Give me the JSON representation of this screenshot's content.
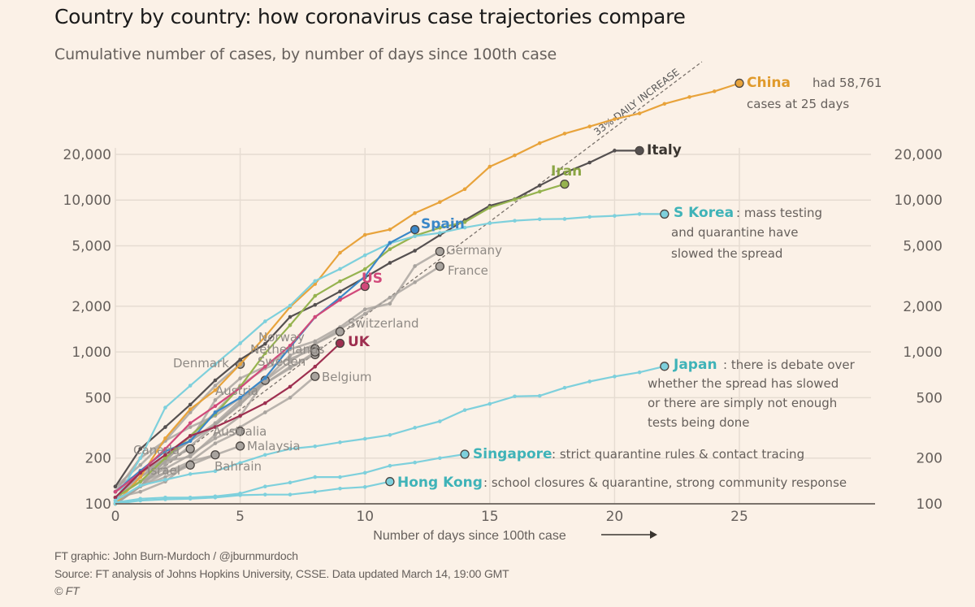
{
  "header": {
    "title": "Country by country: how coronavirus case trajectories compare",
    "subtitle": "Cumulative number of cases, by number of days since 100th case"
  },
  "footer": {
    "credit": "FT graphic: John Burn-Murdoch / @jburnmurdoch",
    "source": "Source: FT analysis of Johns Hopkins University, CSSE. Data updated March 14, 19:00 GMT",
    "copyright": "© FT"
  },
  "chart_data": {
    "type": "line",
    "title": "Country by country: how coronavirus case trajectories compare",
    "subtitle": "Cumulative number of cases, by number of days since 100th case",
    "xlabel": "Number of days since 100th case",
    "xlabel_arrow": "→",
    "ylabel": "",
    "yscale": "log",
    "xlim": [
      0,
      30
    ],
    "ylim": [
      100,
      60000
    ],
    "x_ticks": [
      0,
      5,
      10,
      15,
      20,
      25
    ],
    "x_tick_labels": [
      "0",
      "5",
      "10",
      "15",
      "20",
      "25"
    ],
    "y_ticks": [
      100,
      200,
      500,
      1000,
      2000,
      5000,
      10000,
      20000
    ],
    "y_tick_labels": [
      "100",
      "200",
      "500",
      "1,000",
      "2,000",
      "5,000",
      "10,000",
      "20,000"
    ],
    "grid": true,
    "reference_line": {
      "label": "33% DAILY INCREASE",
      "daily_growth": 0.33,
      "start": 100,
      "x_end": 23.5
    },
    "series": [
      {
        "name": "China",
        "color": "#e8a33b",
        "highlight": true,
        "note": "had 58,761 cases at 25 days",
        "x": [
          0,
          1,
          2,
          3,
          4,
          5,
          6,
          7,
          8,
          9,
          10,
          11,
          12,
          13,
          14,
          15,
          16,
          17,
          18,
          19,
          20,
          21,
          22,
          23,
          24,
          25
        ],
        "y": [
          100,
          150,
          270,
          420,
          560,
          830,
          1260,
          1980,
          2800,
          4500,
          5900,
          6400,
          8200,
          9700,
          11800,
          16600,
          19700,
          23700,
          27400,
          30500,
          34100,
          37200,
          43000,
          47700,
          52000,
          58761
        ]
      },
      {
        "name": "Italy",
        "color": "#555050",
        "highlight": true,
        "note": "",
        "x": [
          0,
          1,
          2,
          3,
          4,
          5,
          6,
          7,
          8,
          9,
          10,
          11,
          12,
          13,
          14,
          15,
          16,
          17,
          18,
          19,
          20,
          21
        ],
        "y": [
          130,
          230,
          320,
          450,
          650,
          890,
          1130,
          1700,
          2040,
          2500,
          3090,
          3860,
          4640,
          5880,
          7380,
          9170,
          10150,
          12460,
          15110,
          17660,
          21160,
          21160
        ]
      },
      {
        "name": "Iran",
        "color": "#96b34f",
        "highlight": true,
        "note": "",
        "x": [
          0,
          1,
          2,
          3,
          4,
          5,
          6,
          7,
          8,
          9,
          10,
          11,
          12,
          13,
          14,
          15,
          16,
          17,
          18
        ],
        "y": [
          110,
          140,
          200,
          280,
          390,
          590,
          980,
          1500,
          2340,
          2920,
          3510,
          4750,
          5820,
          6570,
          7160,
          8920,
          10080,
          11360,
          12730
        ]
      },
      {
        "name": "S Korea",
        "color": "#7ed0dc",
        "highlight": true,
        "note": "mass testing and quarantine have slowed the spread",
        "x": [
          0,
          1,
          2,
          3,
          4,
          5,
          6,
          7,
          8,
          9,
          10,
          11,
          12,
          13,
          14,
          15,
          16,
          17,
          18,
          19,
          20,
          21,
          22
        ],
        "y": [
          105,
          200,
          430,
          600,
          830,
          1140,
          1590,
          2020,
          2930,
          3520,
          4330,
          5190,
          5780,
          6080,
          6590,
          7040,
          7310,
          7480,
          7510,
          7750,
          7870,
          8090,
          8086
        ]
      },
      {
        "name": "Spain",
        "color": "#3a87c8",
        "highlight": true,
        "note": "",
        "x": [
          0,
          1,
          2,
          3,
          4,
          5,
          6,
          7,
          8,
          9,
          10,
          11,
          12
        ],
        "y": [
          120,
          165,
          222,
          259,
          400,
          500,
          673,
          1073,
          1695,
          2277,
          3146,
          5232,
          6391
        ]
      },
      {
        "name": "Germany",
        "color": "#a8a39e",
        "highlight": false,
        "note": "",
        "x": [
          0,
          1,
          2,
          3,
          4,
          5,
          6,
          7,
          8,
          9,
          10,
          11,
          12,
          13
        ],
        "y": [
          130,
          159,
          196,
          262,
          482,
          670,
          799,
          1040,
          1176,
          1457,
          1908,
          2078,
          3675,
          4585
        ]
      },
      {
        "name": "France",
        "color": "#a8a39e",
        "highlight": false,
        "note": "",
        "x": [
          0,
          1,
          2,
          3,
          4,
          5,
          6,
          7,
          8,
          9,
          10,
          11,
          12,
          13
        ],
        "y": [
          100,
          130,
          191,
          204,
          285,
          377,
          653,
          949,
          1126,
          1412,
          1784,
          2281,
          2876,
          3661
        ]
      },
      {
        "name": "US",
        "color": "#d1497a",
        "highlight": true,
        "note": "",
        "x": [
          0,
          1,
          2,
          3,
          4,
          5,
          6,
          7,
          8,
          9,
          10
        ],
        "y": [
          120,
          160,
          230,
          340,
          440,
          580,
          800,
          1100,
          1700,
          2200,
          2700
        ]
      },
      {
        "name": "Switzerland",
        "color": "#a8a39e",
        "highlight": false,
        "note": "",
        "x": [
          0,
          1,
          2,
          3,
          4,
          5,
          6,
          7,
          8,
          9
        ],
        "y": [
          120,
          150,
          200,
          260,
          340,
          480,
          650,
          860,
          1130,
          1360
        ]
      },
      {
        "name": "UK",
        "color": "#9e2f50",
        "highlight": true,
        "note": "",
        "x": [
          0,
          1,
          2,
          3,
          4,
          5,
          6,
          7,
          8,
          9
        ],
        "y": [
          110,
          160,
          210,
          280,
          320,
          380,
          460,
          590,
          800,
          1140
        ]
      },
      {
        "name": "Norway",
        "color": "#a8a39e",
        "highlight": false,
        "note": "",
        "x": [
          0,
          1,
          2,
          3,
          4,
          5,
          6,
          7,
          8
        ],
        "y": [
          110,
          150,
          190,
          280,
          400,
          600,
          780,
          900,
          1050
        ]
      },
      {
        "name": "Netherlands",
        "color": "#a8a39e",
        "highlight": false,
        "note": "",
        "x": [
          0,
          1,
          2,
          3,
          4,
          5,
          6,
          7,
          8
        ],
        "y": [
          130,
          180,
          260,
          320,
          380,
          500,
          620,
          800,
          960
        ]
      },
      {
        "name": "Sweden",
        "color": "#a8a39e",
        "highlight": false,
        "note": "",
        "x": [
          0,
          1,
          2,
          3,
          4,
          5,
          6,
          7,
          8
        ],
        "y": [
          110,
          160,
          200,
          260,
          330,
          460,
          620,
          780,
          1000
        ]
      },
      {
        "name": "Belgium",
        "color": "#a8a39e",
        "highlight": false,
        "note": "",
        "x": [
          0,
          1,
          2,
          3,
          4,
          5,
          6,
          7,
          8
        ],
        "y": [
          110,
          140,
          170,
          210,
          270,
          320,
          400,
          500,
          690
        ]
      },
      {
        "name": "Denmark",
        "color": "#a8a39e",
        "highlight": false,
        "note": "",
        "x": [
          0,
          1,
          2,
          3,
          4,
          5
        ],
        "y": [
          120,
          200,
          260,
          400,
          600,
          830
        ]
      },
      {
        "name": "Austria",
        "color": "#a8a39e",
        "highlight": false,
        "note": "",
        "x": [
          0,
          1,
          2,
          3,
          4,
          5,
          6
        ],
        "y": [
          100,
          130,
          180,
          240,
          330,
          450,
          650
        ]
      },
      {
        "name": "Australia",
        "color": "#a8a39e",
        "highlight": false,
        "note": "",
        "x": [
          0,
          1,
          2,
          3,
          4,
          5
        ],
        "y": [
          110,
          120,
          140,
          190,
          250,
          300
        ]
      },
      {
        "name": "Malaysia",
        "color": "#a8a39e",
        "highlight": false,
        "note": "",
        "x": [
          0,
          1,
          2,
          3,
          4,
          5
        ],
        "y": [
          100,
          130,
          160,
          190,
          210,
          240
        ]
      },
      {
        "name": "Canada",
        "color": "#a8a39e",
        "highlight": false,
        "note": "",
        "x": [
          0,
          1,
          2,
          3
        ],
        "y": [
          110,
          140,
          190,
          230
        ]
      },
      {
        "name": "Bahrain",
        "color": "#a8a39e",
        "highlight": false,
        "note": "",
        "x": [
          0,
          1,
          2,
          3,
          4
        ],
        "y": [
          110,
          140,
          160,
          180,
          210
        ]
      },
      {
        "name": "Israel",
        "color": "#a8a39e",
        "highlight": false,
        "note": "",
        "x": [
          0,
          1,
          2,
          3
        ],
        "y": [
          100,
          130,
          150,
          180
        ]
      },
      {
        "name": "Japan",
        "color": "#7ed0dc",
        "highlight": true,
        "note": "there is debate over whether the spread has slowed or there are simply not enough tests being done",
        "x": [
          0,
          1,
          2,
          3,
          4,
          5,
          6,
          7,
          8,
          9,
          10,
          11,
          12,
          13,
          14,
          15,
          16,
          17,
          18,
          19,
          20,
          21,
          22
        ],
        "y": [
          105,
          132,
          144,
          157,
          164,
          186,
          210,
          230,
          239,
          254,
          268,
          284,
          317,
          349,
          414,
          455,
          510,
          514,
          581,
          639,
          689,
          734,
          804
        ]
      },
      {
        "name": "Singapore",
        "color": "#7ed0dc",
        "highlight": true,
        "note": "strict quarantine rules & contact tracing",
        "x": [
          0,
          1,
          2,
          3,
          4,
          5,
          6,
          7,
          8,
          9,
          10,
          11,
          12,
          13,
          14
        ],
        "y": [
          102,
          108,
          110,
          110,
          112,
          117,
          130,
          138,
          150,
          150,
          160,
          178,
          187,
          200,
          212
        ]
      },
      {
        "name": "Hong Kong",
        "color": "#7ed0dc",
        "highlight": true,
        "note": "school closures & quarantine, strong community response",
        "x": [
          0,
          1,
          2,
          3,
          4,
          5,
          6,
          7,
          8,
          9,
          10,
          11
        ],
        "y": [
          100,
          105,
          107,
          108,
          110,
          114,
          115,
          115,
          120,
          126,
          129,
          140
        ]
      }
    ]
  }
}
